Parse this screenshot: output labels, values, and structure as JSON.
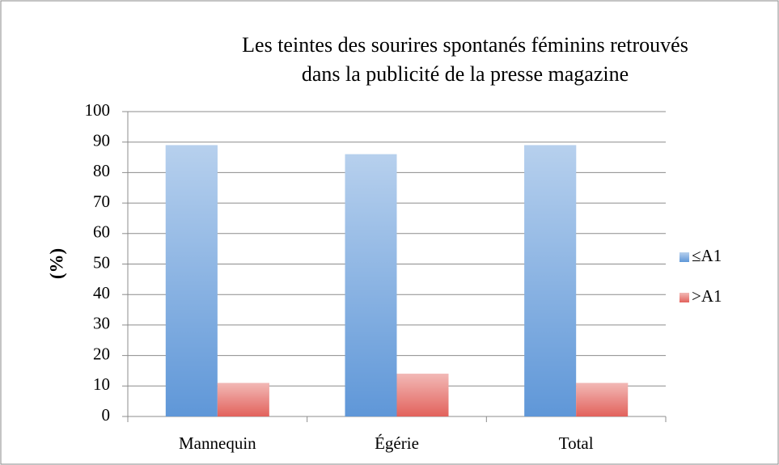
{
  "chart_data": {
    "type": "bar",
    "title": "Les teintes des sourires spontanés féminins retrouvés dans la publicité de la presse magazine",
    "ylabel": "(%)",
    "categories": [
      "Mannequin",
      "Égérie",
      "Total"
    ],
    "series": [
      {
        "name": "≤A1",
        "color": "#5f97d8",
        "values": [
          89,
          86,
          89
        ]
      },
      {
        "name": ">A1",
        "color": "#e2625c",
        "values": [
          11,
          14,
          11
        ]
      }
    ],
    "ylim": [
      0,
      100
    ],
    "yticks": [
      0,
      10,
      20,
      30,
      40,
      50,
      60,
      70,
      80,
      90,
      100
    ],
    "grid": true,
    "legend": "right"
  }
}
